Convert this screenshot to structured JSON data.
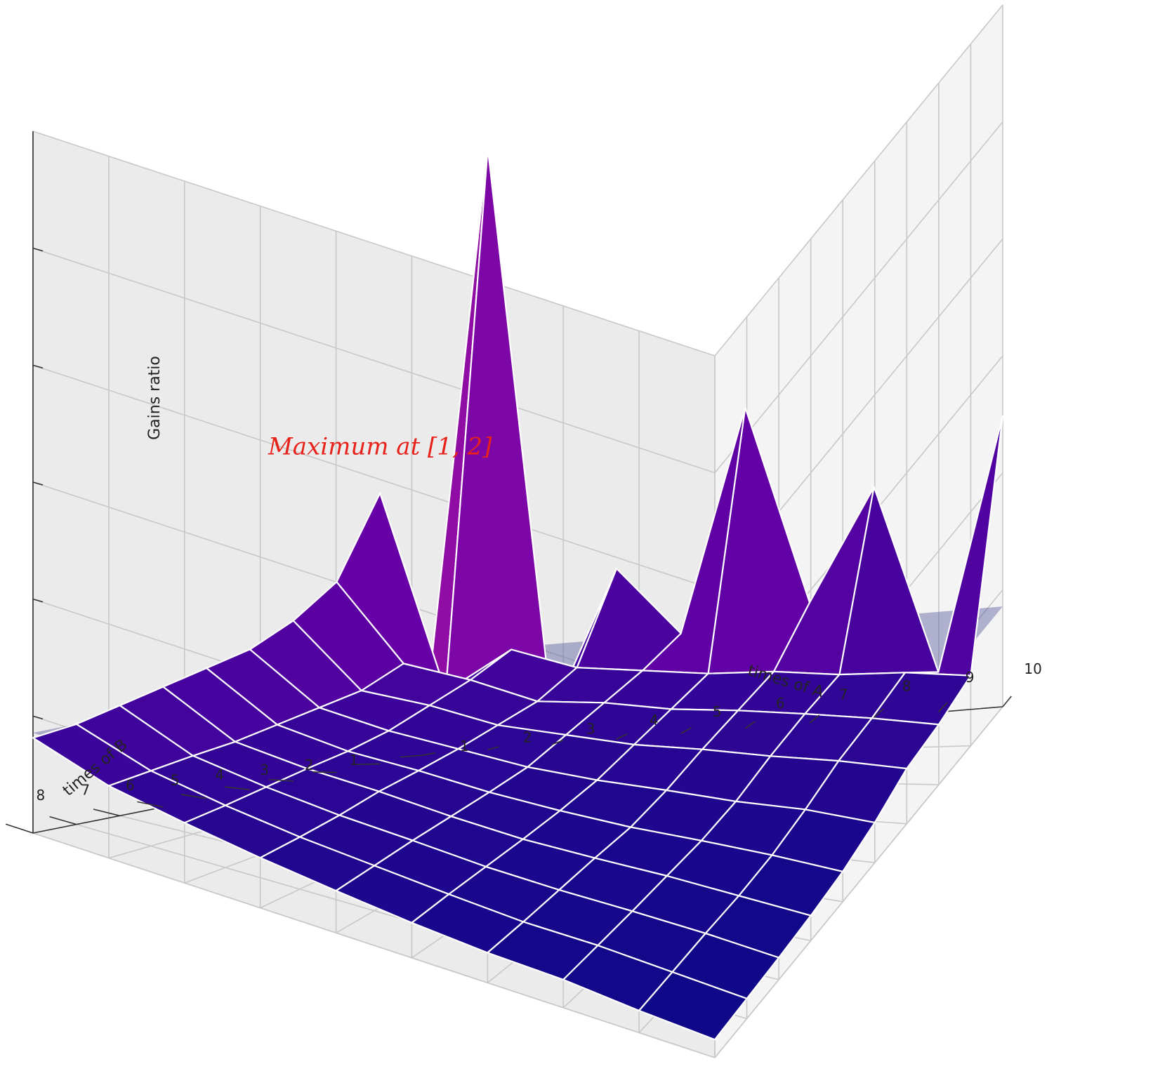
{
  "chart_data": {
    "type": "surface3d",
    "title": "",
    "xlabel": "times of A",
    "ylabel": "times of B",
    "zlabel": "Gains ratio",
    "x_ticks": [
      "1",
      "2",
      "3",
      "4",
      "5",
      "6",
      "7",
      "8",
      "9",
      "10"
    ],
    "y_ticks": [
      "1",
      "2",
      "3",
      "4",
      "5",
      "6",
      "7",
      "8",
      "9",
      "10"
    ],
    "z_ticks_count": 6,
    "xlim": [
      1,
      10
    ],
    "ylim": [
      1,
      10
    ],
    "zlim": [
      0,
      7
    ],
    "grid": true,
    "colormap": "plasma",
    "wire_color": "#ffffff",
    "reference_plane": {
      "z": 1,
      "color": "#5a5aa0"
    },
    "annotation": {
      "text": "Maximum at [1, 2]",
      "x": 1,
      "y": 2,
      "color": "#e8221a"
    },
    "x": [
      1,
      2,
      3,
      4,
      5,
      6,
      7,
      8,
      9,
      10
    ],
    "y": [
      1,
      2,
      3,
      4,
      5,
      6,
      7,
      8,
      9,
      10
    ],
    "z": [
      [
        0.2,
        6.0,
        0.3,
        1.7,
        1.0,
        3.2,
        1.2,
        2.3,
        0.4,
        2.9
      ],
      [
        2.7,
        0.7,
        1.1,
        0.9,
        0.85,
        0.8,
        0.8,
        0.75,
        0.75,
        0.7
      ],
      [
        1.9,
        1.1,
        0.95,
        0.75,
        0.75,
        0.7,
        0.7,
        0.68,
        0.65,
        0.6
      ],
      [
        1.6,
        0.95,
        0.85,
        0.7,
        0.65,
        0.6,
        0.6,
        0.58,
        0.58,
        0.55
      ],
      [
        1.4,
        0.9,
        0.75,
        0.65,
        0.55,
        0.5,
        0.48,
        0.45,
        0.45,
        0.4
      ],
      [
        1.3,
        0.85,
        0.7,
        0.62,
        0.52,
        0.45,
        0.4,
        0.38,
        0.35,
        0.3
      ],
      [
        1.2,
        0.8,
        0.68,
        0.6,
        0.5,
        0.42,
        0.38,
        0.35,
        0.3,
        0.25
      ],
      [
        1.1,
        0.78,
        0.65,
        0.55,
        0.48,
        0.4,
        0.35,
        0.32,
        0.28,
        0.22
      ],
      [
        1.0,
        0.75,
        0.62,
        0.52,
        0.45,
        0.38,
        0.32,
        0.3,
        0.25,
        0.2
      ],
      [
        0.95,
        0.72,
        0.6,
        0.5,
        0.42,
        0.35,
        0.3,
        0.28,
        0.22,
        0.18
      ]
    ]
  }
}
